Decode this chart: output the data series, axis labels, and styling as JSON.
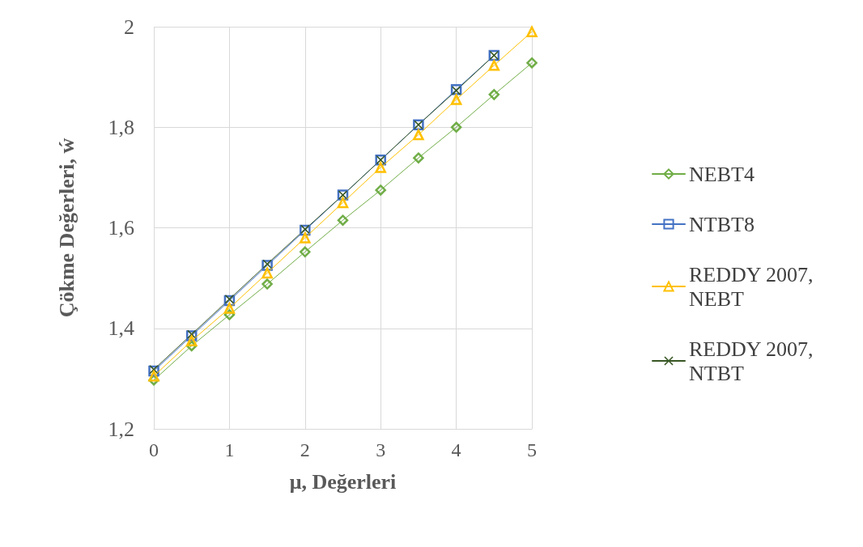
{
  "chart_data": {
    "type": "line",
    "xlabel": "μ, Değerleri",
    "ylabel": "Çökme Değerleri, ẃ",
    "x": [
      0,
      0.5,
      1,
      1.5,
      2,
      2.5,
      3,
      3.5,
      4,
      4.5,
      5
    ],
    "series": [
      {
        "name": "NEBT4",
        "color": "#70ad47",
        "marker": "diamond",
        "values": [
          1.297,
          1.365,
          1.427,
          1.488,
          1.552,
          1.615,
          1.675,
          1.739,
          1.8,
          1.865,
          1.928
        ]
      },
      {
        "name": "NTBT8",
        "color": "#4472c4",
        "marker": "square",
        "values": [
          1.315,
          1.385,
          1.455,
          1.525,
          1.595,
          1.665,
          1.735,
          1.805,
          1.875,
          1.943,
          null
        ]
      },
      {
        "name": "REDDY 2007, NEBT",
        "color": "#ffc000",
        "marker": "triangle",
        "values": [
          1.305,
          1.375,
          1.44,
          1.51,
          1.58,
          1.65,
          1.72,
          1.785,
          1.855,
          1.923,
          1.99
        ]
      },
      {
        "name": "REDDY 2007, NTBT",
        "color": "#375623",
        "marker": "cross",
        "values": [
          1.318,
          1.388,
          1.458,
          1.528,
          1.597,
          1.665,
          1.735,
          1.805,
          1.873,
          1.943,
          null
        ]
      }
    ],
    "xlim": [
      0,
      5
    ],
    "xticks": [
      0,
      1,
      2,
      3,
      4,
      5
    ],
    "ylim": [
      1.2,
      2
    ],
    "yticks": [
      {
        "value": 1.2,
        "label": "1,2"
      },
      {
        "value": 1.4,
        "label": "1,4"
      },
      {
        "value": 1.6,
        "label": "1,6"
      },
      {
        "value": 1.8,
        "label": "1,8"
      },
      {
        "value": 2,
        "label": "2"
      }
    ],
    "grid": true,
    "legend": "right",
    "line_style": "solid"
  }
}
